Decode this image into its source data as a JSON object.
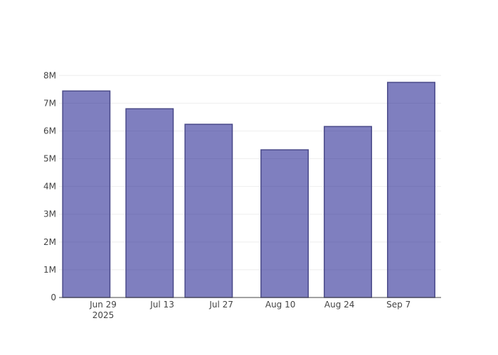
{
  "chart_data": {
    "type": "bar",
    "x": [
      "2025-06-25",
      "2025-07-10",
      "2025-07-24",
      "2025-08-11",
      "2025-08-26",
      "2025-09-10"
    ],
    "values": [
      7440000,
      6800000,
      6240000,
      5320000,
      6160000,
      7750000
    ],
    "color": "rgba(0,0,128,0.5)",
    "edge_color": "#4b4b8a",
    "xlim": [
      "2025-06-18T13:00:00",
      "2025-09-17T02:00:00"
    ],
    "xticks": [
      {
        "value": "2025-06-29",
        "label": "Jun 29\n2025"
      },
      {
        "value": "2025-07-13",
        "label": "Jul 13"
      },
      {
        "value": "2025-07-27",
        "label": "Jul 27"
      },
      {
        "value": "2025-08-10",
        "label": "Aug 10"
      },
      {
        "value": "2025-08-24",
        "label": "Aug 24"
      },
      {
        "value": "2025-09-07",
        "label": "Sep 7"
      }
    ],
    "ylim": [
      0,
      8160000
    ],
    "yticks": [
      0,
      {
        "value": 1000000,
        "label": "1M"
      },
      {
        "value": 2000000,
        "label": "2M"
      },
      {
        "value": 3000000,
        "label": "3M"
      },
      {
        "value": 4000000,
        "label": "4M"
      },
      {
        "value": 5000000,
        "label": "5M"
      },
      {
        "value": 6000000,
        "label": "6M"
      },
      {
        "value": 7000000,
        "label": "7M"
      },
      {
        "value": 8000000,
        "label": "8M"
      }
    ],
    "grid": true
  }
}
